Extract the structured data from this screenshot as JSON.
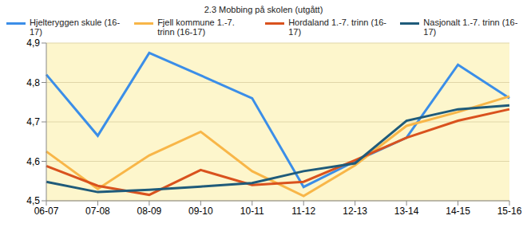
{
  "chart_data": {
    "type": "line",
    "title": "2.3 Mobbing på skolen (utgått)",
    "categories": [
      "06-07",
      "07-08",
      "08-09",
      "09-10",
      "10-11",
      "11-12",
      "12-13",
      "13-14",
      "14-15",
      "15-16"
    ],
    "series": [
      {
        "name": "Hjelteryggen skule (16-17)",
        "color": "#3b8ee8",
        "values": [
          4.82,
          4.665,
          4.875,
          4.818,
          4.76,
          4.535,
          4.6,
          4.66,
          4.845,
          4.76
        ]
      },
      {
        "name": "Fjell kommune 1.-7. trinn (16-17)",
        "color": "#f8b648",
        "values": [
          4.625,
          4.53,
          4.615,
          4.675,
          4.575,
          4.512,
          4.59,
          4.69,
          4.725,
          4.765
        ]
      },
      {
        "name": "Hordaland 1.-7. trinn (16-17)",
        "color": "#d9521e",
        "values": [
          4.588,
          4.538,
          4.515,
          4.578,
          4.54,
          4.548,
          4.603,
          4.66,
          4.703,
          4.732
        ]
      },
      {
        "name": "Nasjonalt 1.-7. trinn (16-17)",
        "color": "#1f5b7a",
        "values": [
          4.548,
          4.522,
          4.528,
          4.536,
          4.545,
          4.575,
          4.595,
          4.703,
          4.732,
          4.742
        ]
      }
    ],
    "ylim": [
      4.5,
      4.9
    ],
    "yticks": [
      {
        "value": 4.5,
        "label": "4,5"
      },
      {
        "value": 4.6,
        "label": "4,6"
      },
      {
        "value": 4.7,
        "label": "4,7"
      },
      {
        "value": 4.8,
        "label": "4,8"
      },
      {
        "value": 4.9,
        "label": "4,9"
      }
    ],
    "grid": true,
    "legend": "top"
  }
}
